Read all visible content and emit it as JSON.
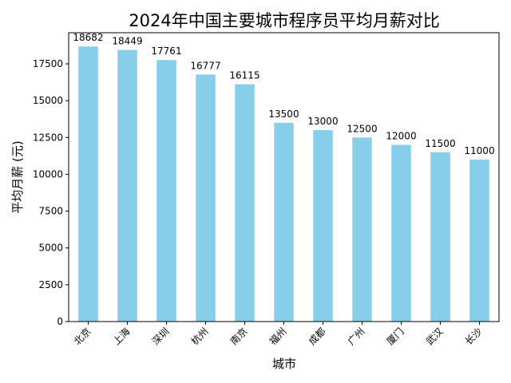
{
  "chart_data": {
    "type": "bar",
    "title": "2024年中国主要城市程序员平均月薪对比",
    "xlabel": "城市",
    "ylabel": "平均月薪 (元)",
    "categories": [
      "北京",
      "上海",
      "深圳",
      "杭州",
      "南京",
      "福州",
      "成都",
      "广州",
      "厦门",
      "武汉",
      "长沙"
    ],
    "values": [
      18682,
      18449,
      17761,
      16777,
      16115,
      13500,
      13000,
      12500,
      12000,
      11500,
      11000
    ],
    "ylim": [
      0,
      19616
    ],
    "yticks": [
      0,
      2500,
      5000,
      7500,
      10000,
      12500,
      15000,
      17500
    ],
    "bar_color": "#87CEEB",
    "grid": false,
    "legend": "none"
  }
}
